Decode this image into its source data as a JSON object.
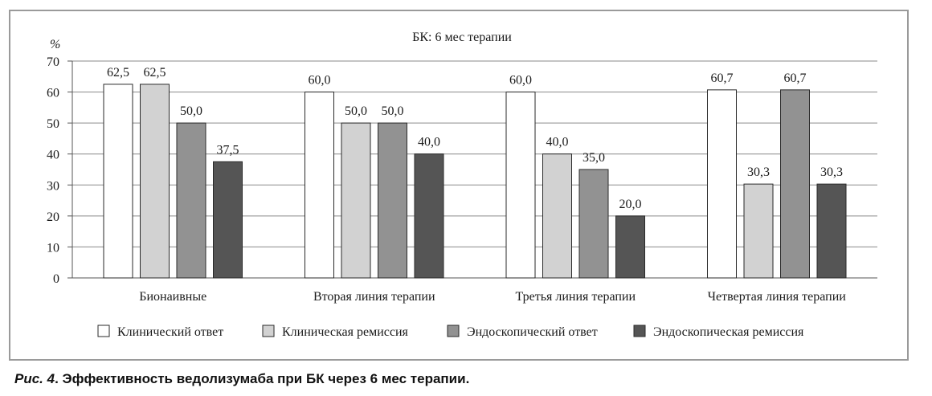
{
  "chart_data": {
    "type": "bar",
    "title": "БК: 6 мес терапии",
    "ylabel": "%",
    "xlabel": "",
    "ylim": [
      0,
      70
    ],
    "yticks": [
      0,
      10,
      20,
      30,
      40,
      50,
      60,
      70
    ],
    "grid": true,
    "legend_position": "bottom",
    "categories": [
      "Бионаивные",
      "Вторая линия терапии",
      "Третья линия терапии",
      "Четвертая линия терапии"
    ],
    "series": [
      {
        "name": "Клинический ответ",
        "color": "#ffffff",
        "values": [
          62.5,
          60.0,
          60.0,
          60.7
        ],
        "labels": [
          "62,5",
          "60,0",
          "60,0",
          "60,7"
        ]
      },
      {
        "name": "Клиническая ремиссия",
        "color": "#d2d2d2",
        "values": [
          62.5,
          50.0,
          40.0,
          30.3
        ],
        "labels": [
          "62,5",
          "50,0",
          "40,0",
          "30,3"
        ]
      },
      {
        "name": "Эндоскопический ответ",
        "color": "#929292",
        "values": [
          50.0,
          50.0,
          35.0,
          60.7
        ],
        "labels": [
          "50,0",
          "50,0",
          "35,0",
          "60,7"
        ]
      },
      {
        "name": "Эндоскопическая ремиссия",
        "color": "#555555",
        "values": [
          37.5,
          40.0,
          20.0,
          30.3
        ],
        "labels": [
          "37,5",
          "40,0",
          "20,0",
          "30,3"
        ]
      }
    ]
  },
  "caption": {
    "prefix": "Рис. 4",
    "text": ". Эффективность ведолизумаба при БК через 6 мес терапии."
  }
}
